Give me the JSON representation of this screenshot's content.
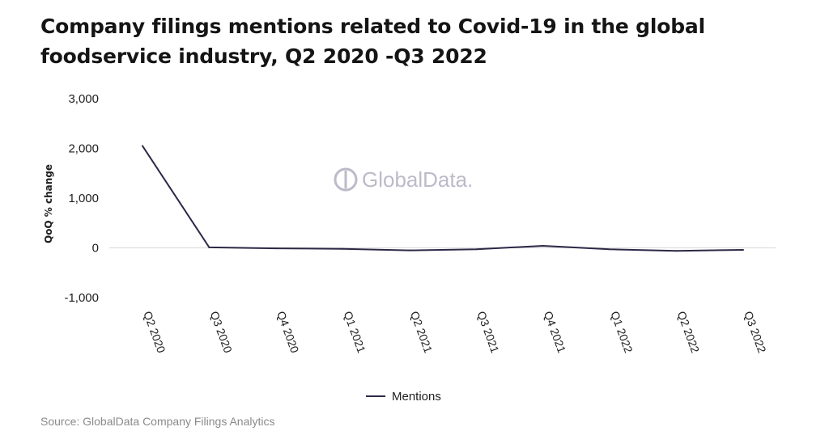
{
  "title": "Company filings mentions related to Covid-19 in the global foodservice industry, Q2 2020 -Q3 2022",
  "source": "Source: GlobalData Company Filings Analytics",
  "watermark": "GlobalData.",
  "colors": {
    "line": "#2c2846",
    "zero_line": "#d9d9d9",
    "text": "#1e1e1e",
    "watermark": "#bdbac9"
  },
  "chart_data": {
    "type": "line",
    "ylabel": "QoQ % change",
    "xlabel": "",
    "categories": [
      "Q2 2020",
      "Q3 2020",
      "Q4 2020",
      "Q1 2021",
      "Q2 2021",
      "Q3 2021",
      "Q4 2021",
      "Q1 2022",
      "Q2 2022",
      "Q3 2022"
    ],
    "series": [
      {
        "name": "Mentions",
        "values": [
          2050,
          10,
          -10,
          -20,
          -50,
          -30,
          40,
          -30,
          -60,
          -40
        ]
      }
    ],
    "ylim": [
      -1000,
      3000
    ],
    "yticks": [
      3000,
      2000,
      1000,
      0,
      -1000
    ],
    "ytick_labels": [
      "3,000",
      "2,000",
      "1,000",
      "0",
      "-1,000"
    ],
    "grid": false,
    "legend": "bottom-center"
  }
}
